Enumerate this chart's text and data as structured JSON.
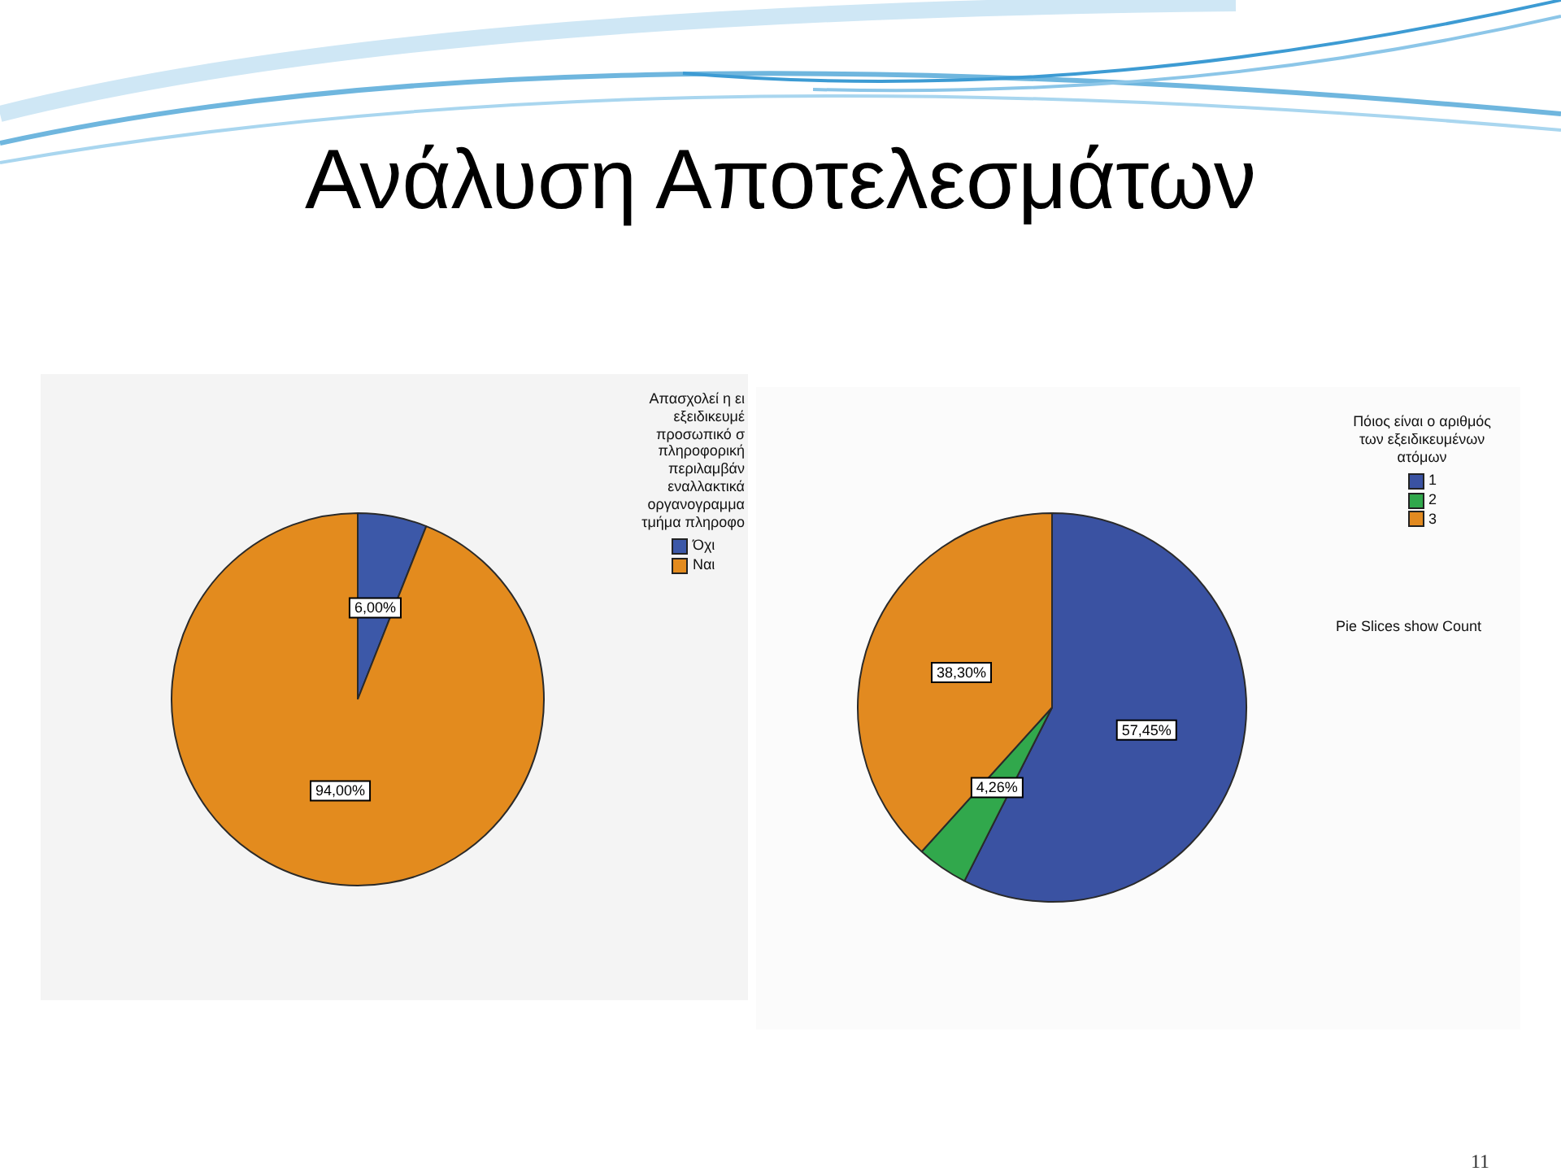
{
  "chart_data": [
    {
      "type": "pie",
      "title": "Ανάλυση Αποτελεσμάτων",
      "legend_title": "Απασχολεί η ει\nεξειδικευμέ\nπροσωπικό σ\nπληροφορική\nπεριλαμβάν\nεναλλακτικά\nοργανογραμμα\nτμήμα πληροφο",
      "categories": [
        "Όχι",
        "Ναι"
      ],
      "values": [
        6.0,
        94.0
      ],
      "colors": [
        "#3c58a8",
        "#e38b1e"
      ],
      "value_labels": [
        "6,00%",
        "94,00%"
      ],
      "legend": "top right"
    },
    {
      "type": "pie",
      "legend_title": "Πόιος είναι ο αριθμός\nτων εξειδικευμένων\nατόμων",
      "categories": [
        "1",
        "2",
        "3"
      ],
      "values": [
        57.45,
        4.26,
        38.3
      ],
      "colors": [
        "#3a52a2",
        "#31a84c",
        "#e28a20"
      ],
      "value_labels": [
        "57,45%",
        "4,26%",
        "38,30%"
      ],
      "legend": "top right",
      "annotations": [
        "Pie Slices show Count",
        "11"
      ]
    }
  ]
}
